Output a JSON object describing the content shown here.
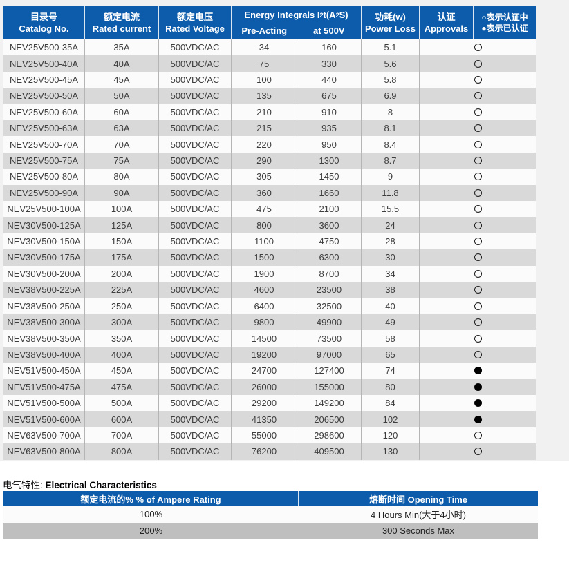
{
  "colors": {
    "header_bg": "#0d5cab",
    "header_text": "#ffffff",
    "row_white": "#fbfbfb",
    "row_gray": "#d9d9d9",
    "char_row_gray": "#bfbfbf",
    "page_bg": "#f1f1f1",
    "data_text": "#3d3d3d"
  },
  "main_table": {
    "headers": {
      "catalog_zh": "目录号",
      "catalog_en": "Catalog No.",
      "current_zh": "额定电流",
      "current_en": "Rated current",
      "voltage_zh": "额定电压",
      "voltage_en": "Rated Voltage",
      "energy_p1": "Energy Integrals I",
      "energy_s1": "2",
      "energy_p2": "t(A",
      "energy_s2": "2",
      "energy_p3": "S)",
      "pre_acting": "Pre-Acting",
      "at_500v": "at 500V",
      "power_zh": "功耗(w)",
      "power_en": "Power Loss",
      "approvals_zh": "认证",
      "approvals_en": "Approvals",
      "legend_line1": "○表示认证中",
      "legend_line2": "●表示已认证"
    },
    "rows": [
      {
        "catalog": "NEV25V500-35A",
        "current": "35A",
        "voltage": "500VDC/AC",
        "pre_acting": "34",
        "at_500v": "160",
        "power_loss": "5.1",
        "status": "open"
      },
      {
        "catalog": "NEV25V500-40A",
        "current": "40A",
        "voltage": "500VDC/AC",
        "pre_acting": "75",
        "at_500v": "330",
        "power_loss": "5.6",
        "status": "open"
      },
      {
        "catalog": "NEV25V500-45A",
        "current": "45A",
        "voltage": "500VDC/AC",
        "pre_acting": "100",
        "at_500v": "440",
        "power_loss": "5.8",
        "status": "open"
      },
      {
        "catalog": "NEV25V500-50A",
        "current": "50A",
        "voltage": "500VDC/AC",
        "pre_acting": "135",
        "at_500v": "675",
        "power_loss": "6.9",
        "status": "open"
      },
      {
        "catalog": "NEV25V500-60A",
        "current": "60A",
        "voltage": "500VDC/AC",
        "pre_acting": "210",
        "at_500v": "910",
        "power_loss": "8",
        "status": "open"
      },
      {
        "catalog": "NEV25V500-63A",
        "current": "63A",
        "voltage": "500VDC/AC",
        "pre_acting": "215",
        "at_500v": "935",
        "power_loss": "8.1",
        "status": "open"
      },
      {
        "catalog": "NEV25V500-70A",
        "current": "70A",
        "voltage": "500VDC/AC",
        "pre_acting": "220",
        "at_500v": "950",
        "power_loss": "8.4",
        "status": "open"
      },
      {
        "catalog": "NEV25V500-75A",
        "current": "75A",
        "voltage": "500VDC/AC",
        "pre_acting": "290",
        "at_500v": "1300",
        "power_loss": "8.7",
        "status": "open"
      },
      {
        "catalog": "NEV25V500-80A",
        "current": "80A",
        "voltage": "500VDC/AC",
        "pre_acting": "305",
        "at_500v": "1450",
        "power_loss": "9",
        "status": "open"
      },
      {
        "catalog": "NEV25V500-90A",
        "current": "90A",
        "voltage": "500VDC/AC",
        "pre_acting": "360",
        "at_500v": "1660",
        "power_loss": "11.8",
        "status": "open"
      },
      {
        "catalog": "NEV25V500-100A",
        "current": "100A",
        "voltage": "500VDC/AC",
        "pre_acting": "475",
        "at_500v": "2100",
        "power_loss": "15.5",
        "status": "open"
      },
      {
        "catalog": "NEV30V500-125A",
        "current": "125A",
        "voltage": "500VDC/AC",
        "pre_acting": "800",
        "at_500v": "3600",
        "power_loss": "24",
        "status": "open"
      },
      {
        "catalog": "NEV30V500-150A",
        "current": "150A",
        "voltage": "500VDC/AC",
        "pre_acting": "1100",
        "at_500v": "4750",
        "power_loss": "28",
        "status": "open"
      },
      {
        "catalog": "NEV30V500-175A",
        "current": "175A",
        "voltage": "500VDC/AC",
        "pre_acting": "1500",
        "at_500v": "6300",
        "power_loss": "30",
        "status": "open"
      },
      {
        "catalog": "NEV30V500-200A",
        "current": "200A",
        "voltage": "500VDC/AC",
        "pre_acting": "1900",
        "at_500v": "8700",
        "power_loss": "34",
        "status": "open"
      },
      {
        "catalog": "NEV38V500-225A",
        "current": "225A",
        "voltage": "500VDC/AC",
        "pre_acting": "4600",
        "at_500v": "23500",
        "power_loss": "38",
        "status": "open"
      },
      {
        "catalog": "NEV38V500-250A",
        "current": "250A",
        "voltage": "500VDC/AC",
        "pre_acting": "6400",
        "at_500v": "32500",
        "power_loss": "40",
        "status": "open"
      },
      {
        "catalog": "NEV38V500-300A",
        "current": "300A",
        "voltage": "500VDC/AC",
        "pre_acting": "9800",
        "at_500v": "49900",
        "power_loss": "49",
        "status": "open"
      },
      {
        "catalog": "NEV38V500-350A",
        "current": "350A",
        "voltage": "500VDC/AC",
        "pre_acting": "14500",
        "at_500v": "73500",
        "power_loss": "58",
        "status": "open"
      },
      {
        "catalog": "NEV38V500-400A",
        "current": "400A",
        "voltage": "500VDC/AC",
        "pre_acting": "19200",
        "at_500v": "97000",
        "power_loss": "65",
        "status": "open"
      },
      {
        "catalog": "NEV51V500-450A",
        "current": "450A",
        "voltage": "500VDC/AC",
        "pre_acting": "24700",
        "at_500v": "127400",
        "power_loss": "74",
        "status": "filled"
      },
      {
        "catalog": "NEV51V500-475A",
        "current": "475A",
        "voltage": "500VDC/AC",
        "pre_acting": "26000",
        "at_500v": "155000",
        "power_loss": "80",
        "status": "filled"
      },
      {
        "catalog": "NEV51V500-500A",
        "current": "500A",
        "voltage": "500VDC/AC",
        "pre_acting": "29200",
        "at_500v": "149200",
        "power_loss": "84",
        "status": "filled"
      },
      {
        "catalog": "NEV51V500-600A",
        "current": "600A",
        "voltage": "500VDC/AC",
        "pre_acting": "41350",
        "at_500v": "206500",
        "power_loss": "102",
        "status": "filled"
      },
      {
        "catalog": "NEV63V500-700A",
        "current": "700A",
        "voltage": "500VDC/AC",
        "pre_acting": "55000",
        "at_500v": "298600",
        "power_loss": "120",
        "status": "open"
      },
      {
        "catalog": "NEV63V500-800A",
        "current": "800A",
        "voltage": "500VDC/AC",
        "pre_acting": "76200",
        "at_500v": "409500",
        "power_loss": "130",
        "status": "open"
      }
    ]
  },
  "section2": {
    "title_zh": "电气特性:",
    "title_en": "Electrical Characteristics",
    "col1_header": "额定电流的%  % of Ampere Rating",
    "col2_header": "熔断时间  Opening Time",
    "rows": [
      {
        "rating": "100%",
        "time": "4 Hours Min(大于4小时)"
      },
      {
        "rating": "200%",
        "time": "300 Seconds Max"
      }
    ]
  }
}
